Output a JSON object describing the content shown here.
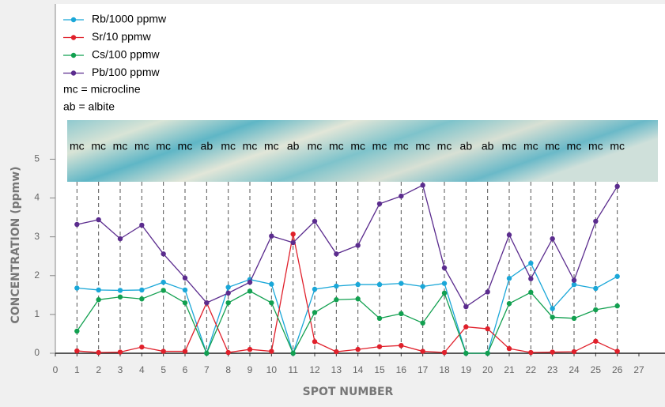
{
  "chart_data": {
    "type": "line",
    "xlabel": "SPOT NUMBER",
    "ylabel": "CONCENTRATION (ppmw)",
    "x": [
      1,
      2,
      3,
      4,
      5,
      6,
      7,
      8,
      9,
      10,
      11,
      12,
      13,
      14,
      15,
      16,
      17,
      18,
      19,
      20,
      21,
      22,
      23,
      24,
      25,
      26
    ],
    "xlim": [
      0,
      27
    ],
    "xticks": [
      0,
      1,
      2,
      3,
      4,
      5,
      6,
      7,
      8,
      9,
      10,
      11,
      12,
      13,
      14,
      15,
      16,
      17,
      18,
      19,
      20,
      21,
      22,
      23,
      24,
      25,
      26,
      27
    ],
    "ylim": [
      0,
      9
    ],
    "yticks": [
      0,
      1,
      2,
      3,
      4,
      5
    ],
    "grid": false,
    "legend": "top-left",
    "series": [
      {
        "name": "Rb/1000 ppmw",
        "color": "#1aa7d8",
        "values": [
          1.68,
          1.63,
          1.62,
          1.63,
          1.83,
          1.63,
          0,
          1.7,
          1.9,
          1.78,
          0,
          1.65,
          1.73,
          1.77,
          1.77,
          1.8,
          1.72,
          1.8,
          0,
          0,
          1.93,
          2.32,
          1.15,
          1.77,
          1.67,
          1.98
        ]
      },
      {
        "name": "Sr/10 ppmw",
        "color": "#e0202b",
        "values": [
          0.06,
          0.02,
          0.03,
          0.16,
          0.05,
          0.05,
          1.3,
          0.02,
          0.1,
          0.05,
          3.07,
          0.3,
          0.04,
          0.1,
          0.17,
          0.2,
          0.05,
          0.02,
          0.68,
          0.63,
          0.12,
          0.02,
          0.03,
          0.04,
          0.31,
          0.05
        ]
      },
      {
        "name": "Cs/100 ppmw",
        "color": "#12a050",
        "values": [
          0.57,
          1.38,
          1.45,
          1.4,
          1.62,
          1.3,
          0,
          1.3,
          1.6,
          1.3,
          0,
          1.05,
          1.38,
          1.4,
          0.9,
          1.02,
          0.78,
          1.55,
          0,
          0,
          1.28,
          1.57,
          0.93,
          0.9,
          1.12,
          1.22
        ]
      },
      {
        "name": "Pb/100 ppmw",
        "color": "#5b2c8e",
        "values": [
          3.32,
          3.44,
          2.95,
          3.3,
          2.56,
          1.94,
          1.3,
          1.55,
          1.83,
          3.02,
          2.85,
          3.4,
          2.56,
          2.78,
          3.85,
          4.05,
          4.33,
          2.2,
          1.2,
          1.58,
          3.05,
          1.92,
          2.95,
          1.88,
          3.4,
          4.3
        ]
      }
    ],
    "legend_notes": [
      "mc = microcline",
      "ab = albite"
    ],
    "legend_note_colors": [
      "#000000",
      "#e0202b"
    ],
    "spot_minerals": [
      "mc",
      "mc",
      "mc",
      "mc",
      "mc",
      "mc",
      "ab",
      "mc",
      "mc",
      "mc",
      "ab",
      "mc",
      "mc",
      "mc",
      "mc",
      "mc",
      "mc",
      "mc",
      "ab",
      "ab",
      "mc",
      "mc",
      "mc",
      "mc",
      "mc",
      "mc"
    ],
    "mineral_colors": {
      "mc": "#000000",
      "ab": "#e0202b"
    }
  }
}
